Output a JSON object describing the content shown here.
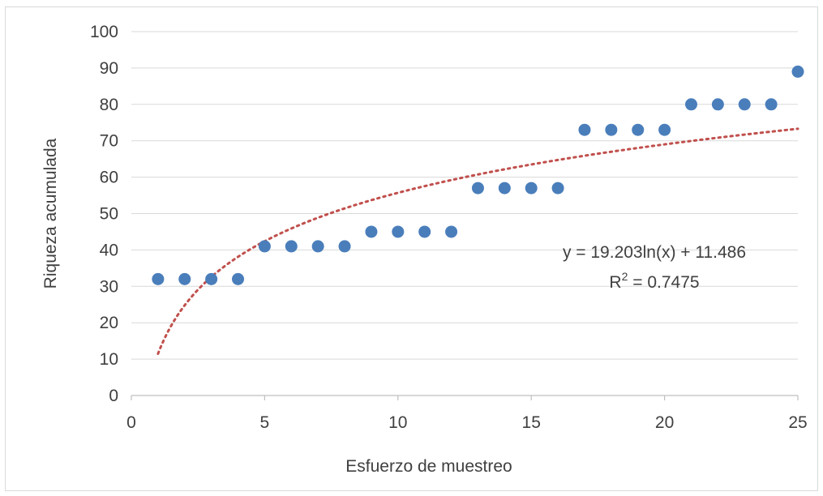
{
  "chart_data": {
    "type": "scatter",
    "title": "",
    "xlabel": "Esfuerzo de muestreo",
    "ylabel": "Riqueza acumulada",
    "xlim": [
      0,
      25
    ],
    "ylim": [
      0,
      100
    ],
    "xticks": [
      0,
      5,
      10,
      15,
      20,
      25
    ],
    "yticks": [
      0,
      10,
      20,
      30,
      40,
      50,
      60,
      70,
      80,
      90,
      100
    ],
    "grid": "horizontal",
    "legend": "none",
    "series": [
      {
        "marker_color": "#4a7ebb",
        "points": [
          {
            "x": 1,
            "y": 32
          },
          {
            "x": 2,
            "y": 32
          },
          {
            "x": 3,
            "y": 32
          },
          {
            "x": 4,
            "y": 32
          },
          {
            "x": 5,
            "y": 41
          },
          {
            "x": 6,
            "y": 41
          },
          {
            "x": 7,
            "y": 41
          },
          {
            "x": 8,
            "y": 41
          },
          {
            "x": 9,
            "y": 45
          },
          {
            "x": 10,
            "y": 45
          },
          {
            "x": 11,
            "y": 45
          },
          {
            "x": 12,
            "y": 45
          },
          {
            "x": 13,
            "y": 57
          },
          {
            "x": 14,
            "y": 57
          },
          {
            "x": 15,
            "y": 57
          },
          {
            "x": 16,
            "y": 57
          },
          {
            "x": 17,
            "y": 73
          },
          {
            "x": 18,
            "y": 73
          },
          {
            "x": 19,
            "y": 73
          },
          {
            "x": 20,
            "y": 73
          },
          {
            "x": 21,
            "y": 80
          },
          {
            "x": 22,
            "y": 80
          },
          {
            "x": 23,
            "y": 80
          },
          {
            "x": 24,
            "y": 80
          },
          {
            "x": 25,
            "y": 89
          }
        ]
      }
    ],
    "trendline": {
      "type": "logarithmic",
      "a": 19.203,
      "b": 11.486,
      "x_range": [
        1,
        25
      ],
      "color": "#c0504d",
      "style": "dotted"
    },
    "annotations": {
      "equation": "y = 19.203ln(x) + 11.486",
      "r_squared_prefix": "R",
      "r_squared_sup": "2",
      "r_squared_suffix": " = 0.7475"
    },
    "colors": {
      "gridline": "#d9d9d9",
      "axis_line": "#bfbfbf"
    }
  }
}
